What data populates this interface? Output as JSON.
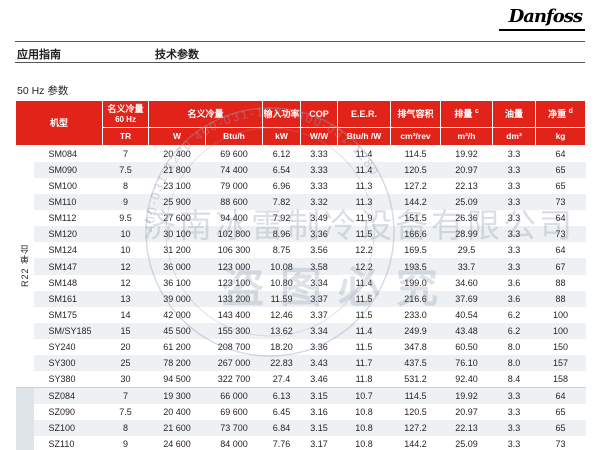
{
  "brand": {
    "logo_text": "Danfoss"
  },
  "nav": {
    "left": "应用指南",
    "right": "技术参数"
  },
  "section_title": "50 Hz 参数",
  "colors": {
    "accent_red": "#e2231a",
    "row_stripe": "#eef1f4",
    "sz_band": "#dfe4e9"
  },
  "table": {
    "header": {
      "model": "机型",
      "capacity_60hz_line1": "名义冷量",
      "capacity_60hz_line2": "60 Hz",
      "capacity": "名义冷量",
      "input_power": "输入功率",
      "cop": "COP",
      "eer": "E.E.R.",
      "displacement_volume": "排气容积",
      "displacement": "排量",
      "displacement_sup": "c",
      "oil": "油量",
      "weight": "净重",
      "weight_sup": "d",
      "units": {
        "tr": "TR",
        "w": "W",
        "btuh": "Btu/h",
        "kw": "kW",
        "ww": "W/W",
        "btuhw": "Btu/h /W",
        "cm3rev": "cm³/rev",
        "m3h": "m³/h",
        "dm3": "dm³",
        "kg": "kg"
      }
    },
    "groups": [
      {
        "label": "R22 单台",
        "span": 15
      },
      {
        "label": "",
        "span": 4
      }
    ],
    "rows": [
      {
        "model": "SM084",
        "values": [
          "7",
          "20 400",
          "69 600",
          "6.12",
          "3.33",
          "11.4",
          "114.5",
          "19.92",
          "3.3",
          "64"
        ]
      },
      {
        "model": "SM090",
        "values": [
          "7.5",
          "21 800",
          "74 400",
          "6.54",
          "3.33",
          "11.4",
          "120.5",
          "20.97",
          "3.3",
          "65"
        ]
      },
      {
        "model": "SM100",
        "values": [
          "8",
          "23 100",
          "79 000",
          "6.96",
          "3.33",
          "11.3",
          "127.2",
          "22.13",
          "3.3",
          "65"
        ]
      },
      {
        "model": "SM110",
        "values": [
          "9",
          "25 900",
          "88 600",
          "7.82",
          "3.32",
          "11.3",
          "144.2",
          "25.09",
          "3.3",
          "73"
        ]
      },
      {
        "model": "SM112",
        "values": [
          "9.5",
          "27 600",
          "94 400",
          "7.92",
          "3.49",
          "11.9",
          "151.5",
          "26.36",
          "3.3",
          "64"
        ]
      },
      {
        "model": "SM120",
        "values": [
          "10",
          "30 100",
          "102 800",
          "8.96",
          "3.36",
          "11.5",
          "166.6",
          "28.99",
          "3.3",
          "73"
        ]
      },
      {
        "model": "SM124",
        "values": [
          "10",
          "31 200",
          "106 300",
          "8.75",
          "3.56",
          "12.2",
          "169.5",
          "29.5",
          "3.3",
          "64"
        ]
      },
      {
        "model": "SM147",
        "values": [
          "12",
          "36 000",
          "123 000",
          "10.08",
          "3.58",
          "12.2",
          "193.5",
          "33.7",
          "3.3",
          "67"
        ]
      },
      {
        "model": "SM148",
        "values": [
          "12",
          "36 100",
          "123 100",
          "10.80",
          "3.34",
          "11.4",
          "199.0",
          "34.60",
          "3.6",
          "88"
        ]
      },
      {
        "model": "SM161",
        "values": [
          "13",
          "39 000",
          "133 200",
          "11.59",
          "3.37",
          "11.5",
          "216.6",
          "37.69",
          "3.6",
          "88"
        ]
      },
      {
        "model": "SM175",
        "values": [
          "14",
          "42 000",
          "143 400",
          "12.46",
          "3.37",
          "11.5",
          "233.0",
          "40.54",
          "6.2",
          "100"
        ]
      },
      {
        "model": "SM/SY185",
        "values": [
          "15",
          "45 500",
          "155 300",
          "13.62",
          "3.34",
          "11.4",
          "249.9",
          "43.48",
          "6.2",
          "100"
        ]
      },
      {
        "model": "SY240",
        "values": [
          "20",
          "61 200",
          "208 700",
          "18.20",
          "3.36",
          "11.5",
          "347.8",
          "60.50",
          "8.0",
          "150"
        ]
      },
      {
        "model": "SY300",
        "values": [
          "25",
          "78 200",
          "267 000",
          "22.83",
          "3.43",
          "11.7",
          "437.5",
          "76.10",
          "8.0",
          "157"
        ]
      },
      {
        "model": "SY380",
        "values": [
          "30",
          "94 500",
          "322 700",
          "27.4",
          "3.46",
          "11.8",
          "531.2",
          "92.40",
          "8.4",
          "158"
        ]
      },
      {
        "model": "SZ084",
        "values": [
          "7",
          "19 300",
          "66 000",
          "6.13",
          "3.15",
          "10.7",
          "114.5",
          "19.92",
          "3.3",
          "64"
        ]
      },
      {
        "model": "SZ090",
        "values": [
          "7.5",
          "20 400",
          "69 600",
          "6.45",
          "3.16",
          "10.8",
          "120.5",
          "20.97",
          "3.3",
          "65"
        ]
      },
      {
        "model": "SZ100",
        "values": [
          "8",
          "21 600",
          "73 700",
          "6.84",
          "3.15",
          "10.8",
          "127.2",
          "22.13",
          "3.3",
          "65"
        ]
      },
      {
        "model": "SZ110",
        "values": [
          "9",
          "24 600",
          "84 000",
          "7.76",
          "3.17",
          "10.8",
          "144.2",
          "25.09",
          "3.3",
          "73"
        ]
      }
    ]
  },
  "watermark": {
    "company": "济南冰雷制冷设备有限公司",
    "slogan": "盗图必究",
    "phone_ring": "400-031-1280      400-031-1280      400-031-1280"
  }
}
